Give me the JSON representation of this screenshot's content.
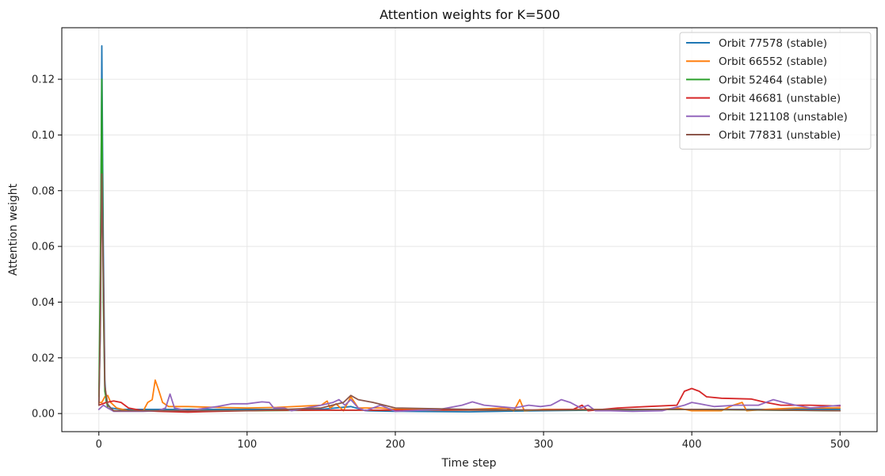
{
  "chart_data": {
    "type": "line",
    "title": "Attention weights for K=500",
    "xlabel": "Time step",
    "ylabel": "Attention weight",
    "xlim": [
      -25,
      525
    ],
    "ylim": [
      -0.0065,
      0.1385
    ],
    "xticks": [
      0,
      100,
      200,
      300,
      400,
      500
    ],
    "xtick_labels": [
      "0",
      "100",
      "200",
      "300",
      "400",
      "500"
    ],
    "yticks": [
      0.0,
      0.02,
      0.04,
      0.06,
      0.08,
      0.1,
      0.12
    ],
    "ytick_labels": [
      "0.00",
      "0.02",
      "0.04",
      "0.06",
      "0.08",
      "0.10",
      "0.12"
    ],
    "grid": true,
    "legend_position": "top-right",
    "series": [
      {
        "name": "Orbit 77578 (stable)",
        "color": "#1f77b4",
        "points": [
          [
            0,
            0.004
          ],
          [
            1,
            0.03
          ],
          [
            2,
            0.132
          ],
          [
            3,
            0.06
          ],
          [
            4,
            0.012
          ],
          [
            5,
            0.004
          ],
          [
            8,
            0.002
          ],
          [
            15,
            0.0015
          ],
          [
            50,
            0.0015
          ],
          [
            100,
            0.0015
          ],
          [
            150,
            0.0015
          ],
          [
            170,
            0.0025
          ],
          [
            180,
            0.001
          ],
          [
            200,
            0.0008
          ],
          [
            250,
            0.0006
          ],
          [
            270,
            0.0008
          ],
          [
            300,
            0.001
          ],
          [
            350,
            0.0013
          ],
          [
            400,
            0.0015
          ],
          [
            450,
            0.0015
          ],
          [
            500,
            0.0015
          ]
        ]
      },
      {
        "name": "Orbit 66552 (stable)",
        "color": "#ff7f0e",
        "points": [
          [
            0,
            0.004
          ],
          [
            2,
            0.004
          ],
          [
            4,
            0.006
          ],
          [
            6,
            0.0065
          ],
          [
            8,
            0.004
          ],
          [
            12,
            0.002
          ],
          [
            20,
            0.001
          ],
          [
            30,
            0.001
          ],
          [
            33,
            0.004
          ],
          [
            36,
            0.005
          ],
          [
            38,
            0.012
          ],
          [
            40,
            0.009
          ],
          [
            43,
            0.004
          ],
          [
            47,
            0.0025
          ],
          [
            60,
            0.0025
          ],
          [
            80,
            0.0022
          ],
          [
            100,
            0.002
          ],
          [
            120,
            0.0022
          ],
          [
            150,
            0.003
          ],
          [
            154,
            0.0045
          ],
          [
            156,
            0.002
          ],
          [
            160,
            0.0035
          ],
          [
            165,
            0.001
          ],
          [
            170,
            0.006
          ],
          [
            175,
            0.002
          ],
          [
            190,
            0.002
          ],
          [
            200,
            0.0015
          ],
          [
            250,
            0.0015
          ],
          [
            275,
            0.002
          ],
          [
            280,
            0.001
          ],
          [
            284,
            0.005
          ],
          [
            287,
            0.001
          ],
          [
            300,
            0.0015
          ],
          [
            350,
            0.0015
          ],
          [
            380,
            0.0015
          ],
          [
            390,
            0.002
          ],
          [
            400,
            0.001
          ],
          [
            420,
            0.001
          ],
          [
            428,
            0.003
          ],
          [
            434,
            0.004
          ],
          [
            437,
            0.001
          ],
          [
            450,
            0.0015
          ],
          [
            470,
            0.002
          ],
          [
            500,
            0.002
          ]
        ]
      },
      {
        "name": "Orbit 52464 (stable)",
        "color": "#2ca02c",
        "points": [
          [
            0,
            0.006
          ],
          [
            1,
            0.05
          ],
          [
            2,
            0.12
          ],
          [
            3,
            0.04
          ],
          [
            4,
            0.008
          ],
          [
            6,
            0.002
          ],
          [
            10,
            0.001
          ],
          [
            50,
            0.001
          ],
          [
            100,
            0.001
          ],
          [
            150,
            0.0012
          ],
          [
            200,
            0.0012
          ],
          [
            250,
            0.0012
          ],
          [
            300,
            0.0012
          ],
          [
            350,
            0.0013
          ],
          [
            400,
            0.0015
          ],
          [
            450,
            0.0012
          ],
          [
            500,
            0.001
          ]
        ]
      },
      {
        "name": "Orbit 46681 (unstable)",
        "color": "#d62728",
        "points": [
          [
            0,
            0.003
          ],
          [
            5,
            0.004
          ],
          [
            10,
            0.0045
          ],
          [
            15,
            0.004
          ],
          [
            20,
            0.002
          ],
          [
            30,
            0.001
          ],
          [
            40,
            0.0008
          ],
          [
            60,
            0.0005
          ],
          [
            80,
            0.0008
          ],
          [
            100,
            0.001
          ],
          [
            120,
            0.0012
          ],
          [
            150,
            0.0012
          ],
          [
            200,
            0.0012
          ],
          [
            250,
            0.0013
          ],
          [
            300,
            0.0013
          ],
          [
            320,
            0.0015
          ],
          [
            326,
            0.003
          ],
          [
            330,
            0.001
          ],
          [
            350,
            0.002
          ],
          [
            370,
            0.0025
          ],
          [
            390,
            0.003
          ],
          [
            395,
            0.008
          ],
          [
            400,
            0.009
          ],
          [
            405,
            0.008
          ],
          [
            410,
            0.006
          ],
          [
            420,
            0.0055
          ],
          [
            440,
            0.0052
          ],
          [
            450,
            0.004
          ],
          [
            460,
            0.003
          ],
          [
            480,
            0.003
          ],
          [
            500,
            0.0027
          ]
        ]
      },
      {
        "name": "Orbit 121108 (unstable)",
        "color": "#9467bd",
        "points": [
          [
            0,
            0.0015
          ],
          [
            3,
            0.003
          ],
          [
            6,
            0.002
          ],
          [
            10,
            0.0008
          ],
          [
            30,
            0.0008
          ],
          [
            40,
            0.001
          ],
          [
            45,
            0.002
          ],
          [
            48,
            0.007
          ],
          [
            51,
            0.002
          ],
          [
            60,
            0.001
          ],
          [
            80,
            0.0025
          ],
          [
            90,
            0.0035
          ],
          [
            100,
            0.0035
          ],
          [
            110,
            0.0042
          ],
          [
            115,
            0.004
          ],
          [
            118,
            0.002
          ],
          [
            125,
            0.002
          ],
          [
            130,
            0.001
          ],
          [
            140,
            0.002
          ],
          [
            150,
            0.003
          ],
          [
            158,
            0.004
          ],
          [
            162,
            0.005
          ],
          [
            166,
            0.003
          ],
          [
            170,
            0.005
          ],
          [
            175,
            0.002
          ],
          [
            180,
            0.001
          ],
          [
            190,
            0.003
          ],
          [
            200,
            0.0008
          ],
          [
            230,
            0.0015
          ],
          [
            245,
            0.003
          ],
          [
            252,
            0.0042
          ],
          [
            260,
            0.003
          ],
          [
            280,
            0.002
          ],
          [
            290,
            0.003
          ],
          [
            298,
            0.0025
          ],
          [
            305,
            0.003
          ],
          [
            312,
            0.005
          ],
          [
            318,
            0.004
          ],
          [
            325,
            0.002
          ],
          [
            330,
            0.003
          ],
          [
            335,
            0.001
          ],
          [
            345,
            0.001
          ],
          [
            360,
            0.0008
          ],
          [
            380,
            0.001
          ],
          [
            395,
            0.003
          ],
          [
            400,
            0.004
          ],
          [
            405,
            0.0035
          ],
          [
            415,
            0.0025
          ],
          [
            430,
            0.003
          ],
          [
            445,
            0.003
          ],
          [
            455,
            0.005
          ],
          [
            462,
            0.004
          ],
          [
            470,
            0.003
          ],
          [
            480,
            0.002
          ],
          [
            490,
            0.0025
          ],
          [
            500,
            0.003
          ]
        ]
      },
      {
        "name": "Orbit 77831 (unstable)",
        "color": "#8c564b",
        "points": [
          [
            0,
            0.003
          ],
          [
            1,
            0.03
          ],
          [
            2,
            0.086
          ],
          [
            3,
            0.05
          ],
          [
            4,
            0.01
          ],
          [
            6,
            0.003
          ],
          [
            10,
            0.001
          ],
          [
            50,
            0.001
          ],
          [
            100,
            0.001
          ],
          [
            150,
            0.002
          ],
          [
            165,
            0.004
          ],
          [
            170,
            0.0065
          ],
          [
            175,
            0.005
          ],
          [
            185,
            0.004
          ],
          [
            200,
            0.002
          ],
          [
            250,
            0.0015
          ],
          [
            300,
            0.0012
          ],
          [
            350,
            0.0015
          ],
          [
            400,
            0.0015
          ],
          [
            450,
            0.0013
          ],
          [
            500,
            0.001
          ]
        ]
      }
    ]
  }
}
